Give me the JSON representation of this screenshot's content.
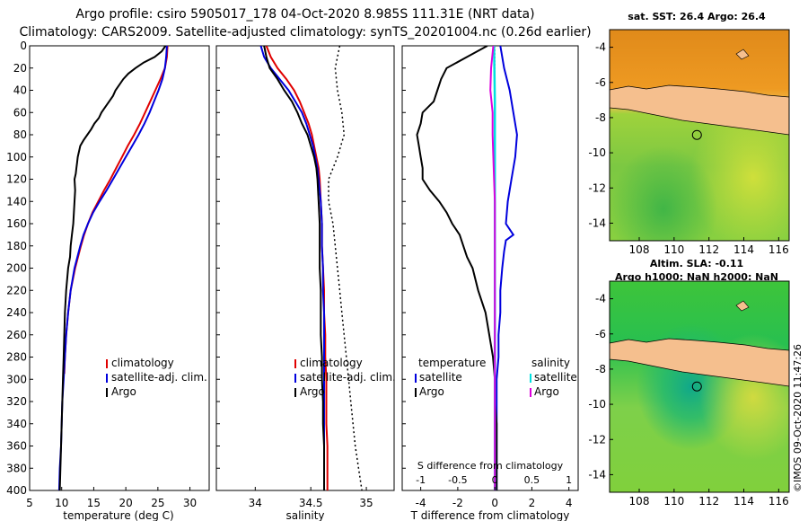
{
  "header": {
    "line1": "Argo profile: csiro 5905017_178 04-Oct-2020 8.985S 111.31E (NRT data)",
    "line2": "Climatology: CARS2009. Satellite-adjusted climatology: synTS_20201004.nc (0.26d earlier)"
  },
  "colors": {
    "climatology": "#e00000",
    "satellite": "#0000dd",
    "argo": "#000000",
    "sat_salinity": "#00e0e0",
    "argo_salinity": "#dd00dd"
  },
  "chart_data": [
    {
      "type": "line",
      "name": "temperature",
      "xlabel": "temperature (deg C)",
      "ylabel": "",
      "xlim": [
        5,
        33
      ],
      "ylim": [
        400,
        0
      ],
      "xticks": [
        5,
        10,
        15,
        20,
        25,
        30
      ],
      "yticks": [
        0,
        20,
        40,
        60,
        80,
        100,
        120,
        140,
        160,
        180,
        200,
        220,
        240,
        260,
        280,
        300,
        320,
        340,
        360,
        380,
        400
      ],
      "legend": [
        "climatology",
        "satellite-adj. clim.",
        "Argo"
      ],
      "series": [
        {
          "name": "climatology",
          "depth": [
            0,
            10,
            20,
            30,
            40,
            50,
            60,
            70,
            80,
            90,
            100,
            110,
            120,
            130,
            140,
            150,
            160,
            170,
            180,
            200,
            220,
            240,
            260,
            280,
            295
          ],
          "values": [
            26.5,
            26.4,
            26.1,
            25.4,
            24.6,
            23.8,
            23.0,
            22.2,
            21.3,
            20.3,
            19.4,
            18.5,
            17.6,
            16.6,
            15.7,
            14.8,
            14.1,
            13.5,
            13.0,
            12.1,
            11.4,
            11.0,
            10.7,
            10.5,
            10.4
          ]
        },
        {
          "name": "satellite-adj. clim.",
          "depth": [
            0,
            10,
            20,
            30,
            40,
            50,
            60,
            70,
            80,
            90,
            100,
            110,
            120,
            130,
            140,
            150,
            160,
            170,
            180,
            200,
            220,
            240,
            260,
            280,
            300,
            320,
            340,
            360,
            380,
            400
          ],
          "values": [
            26.4,
            26.3,
            26.1,
            25.7,
            25.1,
            24.4,
            23.7,
            22.9,
            22.0,
            21.0,
            20.0,
            19.0,
            18.0,
            17.0,
            15.9,
            14.9,
            14.1,
            13.4,
            12.9,
            12.0,
            11.4,
            11.0,
            10.7,
            10.5,
            10.3,
            10.1,
            10.0,
            9.9,
            9.7,
            9.6
          ]
        },
        {
          "name": "Argo",
          "depth": [
            0,
            5,
            10,
            15,
            20,
            25,
            30,
            35,
            40,
            45,
            50,
            55,
            60,
            65,
            70,
            75,
            80,
            85,
            90,
            95,
            100,
            105,
            110,
            115,
            120,
            130,
            140,
            150,
            160,
            170,
            180,
            190,
            200,
            220,
            240,
            260,
            280,
            300,
            320,
            340,
            360,
            380,
            400
          ],
          "values": [
            26.2,
            25.6,
            24.5,
            22.8,
            21.5,
            20.4,
            19.6,
            19.0,
            18.4,
            18.0,
            17.4,
            16.8,
            16.2,
            15.8,
            15.1,
            14.6,
            14.0,
            13.4,
            12.9,
            12.7,
            12.5,
            12.4,
            12.3,
            12.2,
            12.0,
            12.1,
            12.0,
            11.9,
            11.8,
            11.6,
            11.4,
            11.3,
            11.0,
            10.7,
            10.5,
            10.4,
            10.3,
            10.2,
            10.1,
            10.0,
            9.9,
            9.8,
            9.7
          ]
        }
      ]
    },
    {
      "type": "line",
      "name": "salinity",
      "xlabel": "salinity",
      "xlim": [
        33.65,
        35.25
      ],
      "ylim": [
        400,
        0
      ],
      "xticks": [
        34,
        34.5,
        35
      ],
      "legend": [
        "climatology",
        "satellite-adj. clim.",
        "Argo"
      ],
      "series": [
        {
          "name": "climatology",
          "depth": [
            0,
            10,
            20,
            30,
            40,
            50,
            60,
            70,
            80,
            90,
            100,
            110,
            120,
            140,
            160,
            180,
            200,
            220,
            240,
            260,
            280,
            300,
            320,
            340,
            360,
            380,
            400
          ],
          "values": [
            34.1,
            34.14,
            34.2,
            34.28,
            34.35,
            34.4,
            34.44,
            34.48,
            34.51,
            34.53,
            34.55,
            34.57,
            34.58,
            34.59,
            34.6,
            34.6,
            34.61,
            34.62,
            34.62,
            34.63,
            34.63,
            34.64,
            34.64,
            34.64,
            34.65,
            34.65,
            34.65
          ]
        },
        {
          "name": "satellite-adj. clim.",
          "depth": [
            0,
            10,
            20,
            30,
            40,
            50,
            60,
            70,
            80,
            90,
            100,
            110,
            120,
            140,
            160,
            180,
            200,
            220,
            240,
            260,
            280,
            300,
            320,
            340,
            360,
            380,
            400
          ],
          "values": [
            34.05,
            34.08,
            34.14,
            34.22,
            34.3,
            34.36,
            34.42,
            34.46,
            34.49,
            34.52,
            34.54,
            34.56,
            34.57,
            34.59,
            34.6,
            34.6,
            34.61,
            34.61,
            34.62,
            34.62,
            34.62,
            34.62,
            34.62,
            34.62,
            34.62,
            34.62,
            34.62
          ]
        },
        {
          "name": "Argo",
          "depth": [
            0,
            10,
            20,
            30,
            40,
            50,
            60,
            70,
            80,
            90,
            100,
            110,
            120,
            140,
            160,
            180,
            200,
            220,
            240,
            260,
            280,
            300,
            320,
            340,
            360,
            380,
            400
          ],
          "values": [
            34.08,
            34.1,
            34.13,
            34.2,
            34.26,
            34.33,
            34.38,
            34.42,
            34.47,
            34.5,
            34.53,
            34.55,
            34.56,
            34.57,
            34.58,
            34.58,
            34.58,
            34.59,
            34.59,
            34.59,
            34.6,
            34.6,
            34.61,
            34.61,
            34.62,
            34.62,
            34.62
          ]
        },
        {
          "name": "climatology (dotted)",
          "depth": [
            0,
            20,
            40,
            60,
            80,
            100,
            120,
            140,
            160,
            180,
            200,
            220,
            240,
            260,
            280,
            300,
            320,
            340,
            360,
            380,
            400
          ],
          "values": [
            34.76,
            34.72,
            34.74,
            34.78,
            34.8,
            34.74,
            34.66,
            34.66,
            34.7,
            34.72,
            34.74,
            34.76,
            34.78,
            34.8,
            34.82,
            34.84,
            34.86,
            34.88,
            34.9,
            34.93,
            34.96
          ]
        }
      ]
    },
    {
      "type": "line",
      "name": "difference",
      "xlabel": "T difference from climatology",
      "xlabel2": "S difference from climatology",
      "xlim": [
        -5,
        4.5
      ],
      "ylim": [
        400,
        0
      ],
      "xticks": [
        -4,
        -2,
        0,
        2,
        4
      ],
      "xticks2": [
        -1,
        -0.5,
        0,
        0.5,
        1
      ],
      "legend": [
        "temperature",
        "satellite",
        "Argo",
        "salinity",
        "satellite",
        "Argo"
      ],
      "series": [
        {
          "name": "T satellite",
          "depth": [
            0,
            20,
            40,
            60,
            80,
            100,
            120,
            140,
            160,
            170,
            175,
            185,
            200,
            220,
            240,
            260,
            280,
            300,
            320,
            340,
            360,
            380,
            400
          ],
          "values": [
            0.3,
            0.5,
            0.8,
            1.0,
            1.2,
            1.1,
            0.9,
            0.7,
            0.6,
            1.0,
            0.6,
            0.5,
            0.4,
            0.3,
            0.3,
            0.2,
            0.2,
            0.1,
            0.1,
            0.1,
            0.1,
            0.1,
            0.1
          ]
        },
        {
          "name": "T Argo",
          "depth": [
            0,
            10,
            20,
            30,
            40,
            50,
            60,
            70,
            80,
            90,
            100,
            110,
            120,
            130,
            140,
            150,
            160,
            170,
            180,
            190,
            200,
            220,
            240,
            260,
            280,
            300,
            320,
            340,
            360,
            380,
            400
          ],
          "values": [
            -0.4,
            -1.5,
            -2.6,
            -2.9,
            -3.1,
            -3.3,
            -3.9,
            -4.0,
            -4.2,
            -4.1,
            -4.0,
            -3.9,
            -3.9,
            -3.5,
            -3.0,
            -2.6,
            -2.3,
            -1.9,
            -1.7,
            -1.5,
            -1.2,
            -0.9,
            -0.5,
            -0.3,
            -0.1,
            0.0,
            0.0,
            0.1,
            0.1,
            0.1,
            0.1
          ]
        },
        {
          "name": "S satellite",
          "depth": [
            0,
            50,
            100,
            150,
            200,
            250,
            300,
            350,
            400
          ],
          "values": [
            -0.01,
            0.0,
            0.0,
            0.0,
            0.0,
            0.0,
            0.0,
            0.0,
            0.0
          ]
        },
        {
          "name": "S Argo",
          "depth": [
            0,
            20,
            40,
            60,
            80,
            100,
            120,
            140,
            160,
            180,
            200,
            220,
            240,
            260,
            280,
            300,
            320,
            340,
            360,
            380,
            400
          ],
          "values": [
            -0.02,
            -0.05,
            -0.06,
            -0.03,
            -0.03,
            -0.02,
            -0.01,
            0.0,
            0.0,
            0.0,
            0.0,
            0.0,
            0.0,
            0.0,
            0.0,
            0.0,
            0.0,
            0.0,
            0.0,
            0.0,
            0.0
          ]
        }
      ]
    },
    {
      "type": "heatmap",
      "name": "sst-map",
      "title": "sat. SST: 26.4 Argo: 26.4",
      "xticks": [
        108,
        110,
        112,
        114,
        116
      ],
      "yticks": [
        -4,
        -6,
        -8,
        -10,
        -12,
        -14
      ],
      "marker": {
        "lon": 111.31,
        "lat": -8.985
      }
    },
    {
      "type": "heatmap",
      "name": "sla-map",
      "title": "Altim. SLA: -0.11",
      "subtitle": "Argo h1000: NaN h2000: NaN",
      "xticks": [
        108,
        110,
        112,
        114,
        116
      ],
      "yticks": [
        -4,
        -6,
        -8,
        -10,
        -12,
        -14
      ],
      "marker": {
        "lon": 111.31,
        "lat": -8.985
      }
    }
  ],
  "watermark": "©IMOS 09-Oct-2020 11:47:26"
}
